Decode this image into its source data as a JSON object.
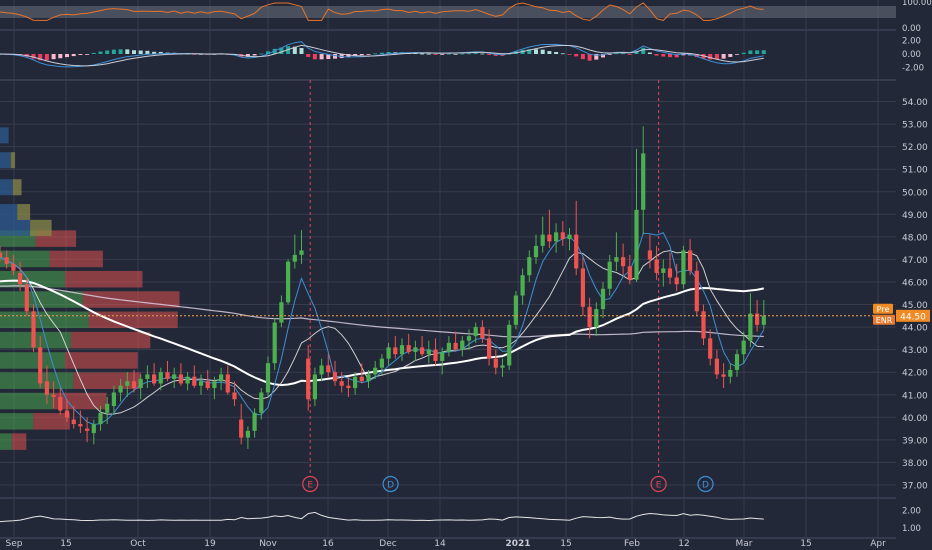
{
  "colors": {
    "background": "#232838",
    "grid": "#363c4e",
    "axis_text": "#c8ccd6",
    "up": "#4caf50",
    "down": "#ef5350",
    "ma_fast": "#3d8fd6",
    "ma_mid": "#e0e0e0",
    "ma_slow": "#ffffff",
    "price_line": "#f5a04a",
    "rsi": "#e8732a",
    "earnings": "#e0455a",
    "dividend": "#3d8fd6",
    "pre_tag": "#f08a24",
    "enr_tag": "#e57a2e",
    "macd_pos": "#26a69a",
    "macd_pos_light": "#b2dfdb",
    "macd_neg": "#ef3f5f",
    "macd_neg_light": "#f8bbd0"
  },
  "chart_data": {
    "type": "candlestick",
    "ticker": "ENR",
    "title": "",
    "ylim": [
      36.6,
      54.6
    ],
    "y_ticks": [
      "54.00",
      "53.00",
      "52.00",
      "51.00",
      "50.00",
      "49.00",
      "48.00",
      "47.00",
      "46.00",
      "45.00",
      "44.00",
      "43.00",
      "42.00",
      "41.00",
      "40.00",
      "39.00",
      "38.00",
      "37.00"
    ],
    "x_ticks": [
      "Sep",
      "15",
      "Oct",
      "19",
      "Nov",
      "16",
      "Dec",
      "14",
      "2021",
      "15",
      "Feb",
      "12",
      "Mar",
      "15",
      "Apr"
    ],
    "candles": [
      [
        47.3,
        47.6,
        46.9,
        47.1
      ],
      [
        47.1,
        47.4,
        46.6,
        46.8
      ],
      [
        46.8,
        47.2,
        46.3,
        46.5
      ],
      [
        46.4,
        46.9,
        45.6,
        45.9
      ],
      [
        45.9,
        46.2,
        44.5,
        44.7
      ],
      [
        44.7,
        45.0,
        42.9,
        43.1
      ],
      [
        43.1,
        43.6,
        41.3,
        41.5
      ],
      [
        41.6,
        42.3,
        40.6,
        41.0
      ],
      [
        41.0,
        41.6,
        40.4,
        40.9
      ],
      [
        40.9,
        41.3,
        40.1,
        40.3
      ],
      [
        40.3,
        40.8,
        39.8,
        40.0
      ],
      [
        39.9,
        40.5,
        39.5,
        39.7
      ],
      [
        39.7,
        40.3,
        39.3,
        39.6
      ],
      [
        39.5,
        40.0,
        38.9,
        39.4
      ],
      [
        39.3,
        39.9,
        38.8,
        39.7
      ],
      [
        39.7,
        40.5,
        39.4,
        40.2
      ],
      [
        40.2,
        40.9,
        39.7,
        40.6
      ],
      [
        40.5,
        41.4,
        40.1,
        41.1
      ],
      [
        41.1,
        41.7,
        40.7,
        41.4
      ],
      [
        41.4,
        42.0,
        40.9,
        41.6
      ],
      [
        41.6,
        42.1,
        41.1,
        41.3
      ],
      [
        41.3,
        41.9,
        40.8,
        41.7
      ],
      [
        41.7,
        42.3,
        41.3,
        41.9
      ],
      [
        41.9,
        42.4,
        41.4,
        41.5
      ],
      [
        41.5,
        42.2,
        41.2,
        42.0
      ],
      [
        42.0,
        42.5,
        41.6,
        41.7
      ],
      [
        41.7,
        42.2,
        41.3,
        41.9
      ],
      [
        41.9,
        42.4,
        41.4,
        41.5
      ],
      [
        41.5,
        42.0,
        41.2,
        41.8
      ],
      [
        41.8,
        42.3,
        41.3,
        41.4
      ],
      [
        41.4,
        41.9,
        41.0,
        41.6
      ],
      [
        41.6,
        42.1,
        41.2,
        41.3
      ],
      [
        41.3,
        41.8,
        40.8,
        41.6
      ],
      [
        41.6,
        42.2,
        41.2,
        41.9
      ],
      [
        41.9,
        42.3,
        41.0,
        41.1
      ],
      [
        41.1,
        41.6,
        40.5,
        40.8
      ],
      [
        39.9,
        40.6,
        38.8,
        39.1
      ],
      [
        39.1,
        39.6,
        38.6,
        39.4
      ],
      [
        39.4,
        40.4,
        39.1,
        40.2
      ],
      [
        40.2,
        41.3,
        39.9,
        41.1
      ],
      [
        41.1,
        42.7,
        40.9,
        42.4
      ],
      [
        42.4,
        44.4,
        42.1,
        44.2
      ],
      [
        44.2,
        45.4,
        44.0,
        45.1
      ],
      [
        45.1,
        47.0,
        45.0,
        46.9
      ],
      [
        46.9,
        48.1,
        46.6,
        47.2
      ],
      [
        47.2,
        48.3,
        46.8,
        47.4
      ],
      [
        42.6,
        43.2,
        40.3,
        40.8
      ],
      [
        40.8,
        42.2,
        40.5,
        41.9
      ],
      [
        41.9,
        42.6,
        41.6,
        42.3
      ],
      [
        42.3,
        42.8,
        41.8,
        42.0
      ],
      [
        42.0,
        42.5,
        41.4,
        41.6
      ],
      [
        41.6,
        42.0,
        41.1,
        41.4
      ],
      [
        41.4,
        41.8,
        40.9,
        41.3
      ],
      [
        41.3,
        42.0,
        41.0,
        41.8
      ],
      [
        41.8,
        42.4,
        41.5,
        41.6
      ],
      [
        41.6,
        42.1,
        41.3,
        41.9
      ],
      [
        41.9,
        42.5,
        41.7,
        42.2
      ],
      [
        42.2,
        42.8,
        41.9,
        42.6
      ],
      [
        42.6,
        43.3,
        42.3,
        43.1
      ],
      [
        43.1,
        43.6,
        42.6,
        42.8
      ],
      [
        42.8,
        43.5,
        42.5,
        43.2
      ],
      [
        43.2,
        43.7,
        42.8,
        42.9
      ],
      [
        42.9,
        43.4,
        42.5,
        43.1
      ],
      [
        43.1,
        43.6,
        42.7,
        42.8
      ],
      [
        42.8,
        43.4,
        42.4,
        43.0
      ],
      [
        43.0,
        43.5,
        42.3,
        42.5
      ],
      [
        42.5,
        43.1,
        41.9,
        42.9
      ],
      [
        42.9,
        43.6,
        42.7,
        43.3
      ],
      [
        43.3,
        43.8,
        42.9,
        43.0
      ],
      [
        43.0,
        43.6,
        42.7,
        43.4
      ],
      [
        43.4,
        43.9,
        43.0,
        43.6
      ],
      [
        43.6,
        44.2,
        43.3,
        44.0
      ],
      [
        44.0,
        44.3,
        43.3,
        43.5
      ],
      [
        43.5,
        43.9,
        42.3,
        42.6
      ],
      [
        42.6,
        43.0,
        41.9,
        42.2
      ],
      [
        42.2,
        42.6,
        41.8,
        42.3
      ],
      [
        42.3,
        44.3,
        42.1,
        44.1
      ],
      [
        44.1,
        45.6,
        43.9,
        45.4
      ],
      [
        45.4,
        46.6,
        45.0,
        46.3
      ],
      [
        46.3,
        47.4,
        46.0,
        47.1
      ],
      [
        47.1,
        48.1,
        46.8,
        47.6
      ],
      [
        47.6,
        48.9,
        47.3,
        48.1
      ],
      [
        48.1,
        49.2,
        47.5,
        47.8
      ],
      [
        47.8,
        48.6,
        47.3,
        48.2
      ],
      [
        48.2,
        48.7,
        47.6,
        47.9
      ],
      [
        47.9,
        48.4,
        47.4,
        48.1
      ],
      [
        48.1,
        49.6,
        46.3,
        46.6
      ],
      [
        46.6,
        47.1,
        44.5,
        44.9
      ],
      [
        44.9,
        45.3,
        43.5,
        44.0
      ],
      [
        44.0,
        45.1,
        43.6,
        44.8
      ],
      [
        44.8,
        46.0,
        44.4,
        45.7
      ],
      [
        45.7,
        47.2,
        45.4,
        46.9
      ],
      [
        46.9,
        48.2,
        46.5,
        47.1
      ],
      [
        47.1,
        47.7,
        46.3,
        46.7
      ],
      [
        46.7,
        47.2,
        45.9,
        46.1
      ],
      [
        46.1,
        51.9,
        46.0,
        49.2
      ],
      [
        49.2,
        52.9,
        48.1,
        51.7
      ],
      [
        47.4,
        48.1,
        46.6,
        47.0
      ],
      [
        47.0,
        47.6,
        46.1,
        46.4
      ],
      [
        46.4,
        47.0,
        45.8,
        46.6
      ],
      [
        46.6,
        47.3,
        45.9,
        46.2
      ],
      [
        46.2,
        46.8,
        45.6,
        45.9
      ],
      [
        45.9,
        47.6,
        45.7,
        47.4
      ],
      [
        47.4,
        47.9,
        46.3,
        46.5
      ],
      [
        46.5,
        46.9,
        44.5,
        44.7
      ],
      [
        44.7,
        45.0,
        43.2,
        43.5
      ],
      [
        43.5,
        43.9,
        42.3,
        42.6
      ],
      [
        42.6,
        43.0,
        41.7,
        41.9
      ],
      [
        41.9,
        42.4,
        41.3,
        41.8
      ],
      [
        41.8,
        42.4,
        41.5,
        42.1
      ],
      [
        42.1,
        43.0,
        41.8,
        42.8
      ],
      [
        42.8,
        43.8,
        42.4,
        43.4
      ],
      [
        43.4,
        45.5,
        43.1,
        44.6
      ],
      [
        44.6,
        45.2,
        43.8,
        44.1
      ],
      [
        44.1,
        45.2,
        43.9,
        44.5
      ]
    ],
    "current_price": 44.5,
    "price_tags": [
      {
        "label": "Pre",
        "value": "44.50"
      },
      {
        "label": "ENR",
        "value": ""
      }
    ],
    "events": [
      {
        "type": "earnings",
        "label": "E",
        "index": 46
      },
      {
        "type": "dividend",
        "label": "D",
        "index": 58
      },
      {
        "type": "earnings",
        "label": "E",
        "index": 98
      },
      {
        "type": "dividend",
        "label": "D",
        "index": 105
      }
    ],
    "volume_profile": [
      {
        "price": 47.9,
        "up": 0.3,
        "down": 0.42
      },
      {
        "price": 47.0,
        "up": 0.42,
        "down": 0.55
      },
      {
        "price": 46.1,
        "up": 0.55,
        "down": 0.8
      },
      {
        "price": 45.2,
        "up": 0.7,
        "down": 1.0
      },
      {
        "price": 44.3,
        "up": 0.75,
        "down": 0.92
      },
      {
        "price": 43.4,
        "up": 0.6,
        "down": 0.82
      },
      {
        "price": 42.5,
        "up": 0.55,
        "down": 0.75
      },
      {
        "price": 41.6,
        "up": 0.62,
        "down": 0.7
      },
      {
        "price": 40.7,
        "up": 0.45,
        "down": 0.55
      },
      {
        "price": 39.8,
        "up": 0.28,
        "down": 0.38
      },
      {
        "price": 38.9,
        "up": 0.1,
        "down": 0.15
      }
    ],
    "rsi": {
      "ylim": [
        0,
        100
      ],
      "ticks": [
        "100.00",
        "0.00"
      ]
    },
    "macd": {
      "ylim": [
        -2.4,
        2.4
      ],
      "ticks": [
        "2.00",
        "0.00",
        "-2.00"
      ]
    },
    "indicator3": {
      "ylim": [
        0.7,
        2.3
      ],
      "ticks": [
        "2.00",
        "1.00"
      ]
    }
  }
}
